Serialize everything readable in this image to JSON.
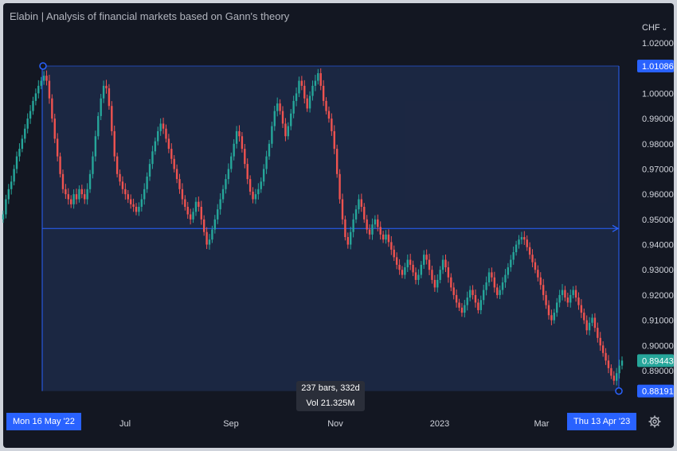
{
  "title": "Elabin | Analysis of financial markets based on Gann's theory",
  "currency": "CHF",
  "colors": {
    "up": "#26a69a",
    "down": "#ef5350",
    "accent": "#2962ff",
    "range_fill": "#1d2a48",
    "background": "#131722"
  },
  "price_axis": {
    "ticks": [
      "1.02000",
      "1.00000",
      "0.99000",
      "0.98000",
      "0.97000",
      "0.96000",
      "0.95000",
      "0.94000",
      "0.93000",
      "0.92000",
      "0.91000",
      "0.90000",
      "0.89000"
    ],
    "tick_values": [
      1.02,
      1.0,
      0.99,
      0.98,
      0.97,
      0.96,
      0.95,
      0.94,
      0.93,
      0.92,
      0.91,
      0.9,
      0.89
    ],
    "range_high_label": "1.01086",
    "last_price_label": "0.89443",
    "range_low_label": "0.88191"
  },
  "time_axis": {
    "labels": [
      "Jul",
      "Sep",
      "Nov",
      "2023",
      "Mar"
    ],
    "start_badge": "Mon 16 May '22",
    "end_badge": "Thu 13 Apr '23"
  },
  "measure_tooltip": {
    "line1": "237 bars, 332d",
    "line2": "Vol 21.325M"
  },
  "icons": {
    "settings": "gear-icon",
    "currency_menu": "chevron-down-icon"
  },
  "chart_data": {
    "type": "candlestick",
    "title": "",
    "xlabel": "",
    "ylabel": "",
    "ylim": [
      0.878,
      1.024
    ],
    "grid": false,
    "measure_range": {
      "start": "2022-05-16",
      "end": "2023-04-13",
      "high": 1.01086,
      "low": 0.88191,
      "bars": 237,
      "days": 332,
      "volume": "21.325M"
    },
    "series": [
      {
        "name": "",
        "close_path": [
          0.952,
          0.958,
          0.962,
          0.965,
          0.97,
          0.975,
          0.978,
          0.982,
          0.986,
          0.99,
          0.993,
          0.997,
          1.0,
          1.003,
          1.005,
          1.007,
          1.005,
          0.998,
          0.99,
          0.982,
          0.975,
          0.968,
          0.962,
          0.96,
          0.958,
          0.956,
          0.96,
          0.958,
          0.962,
          0.96,
          0.958,
          0.962,
          0.968,
          0.975,
          0.983,
          0.991,
          0.998,
          1.003,
          1.002,
          0.995,
          0.985,
          0.975,
          0.968,
          0.965,
          0.962,
          0.96,
          0.958,
          0.956,
          0.955,
          0.953,
          0.955,
          0.958,
          0.962,
          0.967,
          0.972,
          0.977,
          0.981,
          0.985,
          0.988,
          0.986,
          0.982,
          0.978,
          0.974,
          0.97,
          0.966,
          0.962,
          0.958,
          0.955,
          0.952,
          0.95,
          0.953,
          0.957,
          0.955,
          0.95,
          0.945,
          0.94,
          0.942,
          0.946,
          0.95,
          0.954,
          0.958,
          0.962,
          0.966,
          0.97,
          0.975,
          0.98,
          0.985,
          0.983,
          0.978,
          0.972,
          0.966,
          0.961,
          0.958,
          0.96,
          0.962,
          0.965,
          0.97,
          0.975,
          0.98,
          0.987,
          0.993,
          0.996,
          0.993,
          0.988,
          0.983,
          0.987,
          0.992,
          0.997,
          1.0,
          1.005,
          1.003,
          0.998,
          0.994,
          0.999,
          1.003,
          1.005,
          1.008,
          1.003,
          0.997,
          0.993,
          0.99,
          0.985,
          0.978,
          0.968,
          0.958,
          0.95,
          0.943,
          0.94,
          0.945,
          0.95,
          0.954,
          0.958,
          0.955,
          0.95,
          0.946,
          0.944,
          0.948,
          0.95,
          0.947,
          0.944,
          0.942,
          0.944,
          0.941,
          0.938,
          0.935,
          0.932,
          0.93,
          0.928,
          0.931,
          0.934,
          0.932,
          0.929,
          0.926,
          0.928,
          0.932,
          0.936,
          0.934,
          0.93,
          0.926,
          0.923,
          0.926,
          0.93,
          0.934,
          0.931,
          0.927,
          0.923,
          0.92,
          0.917,
          0.915,
          0.913,
          0.916,
          0.919,
          0.922,
          0.92,
          0.917,
          0.914,
          0.918,
          0.922,
          0.925,
          0.929,
          0.927,
          0.923,
          0.92,
          0.922,
          0.925,
          0.928,
          0.931,
          0.934,
          0.937,
          0.94,
          0.942,
          0.943,
          0.942,
          0.939,
          0.936,
          0.933,
          0.93,
          0.927,
          0.924,
          0.92,
          0.916,
          0.912,
          0.91,
          0.913,
          0.917,
          0.92,
          0.922,
          0.919,
          0.917,
          0.92,
          0.922,
          0.919,
          0.916,
          0.913,
          0.91,
          0.906,
          0.909,
          0.911,
          0.907,
          0.903,
          0.9,
          0.897,
          0.894,
          0.891,
          0.888,
          0.886,
          0.889,
          0.892,
          0.894
        ]
      }
    ]
  }
}
